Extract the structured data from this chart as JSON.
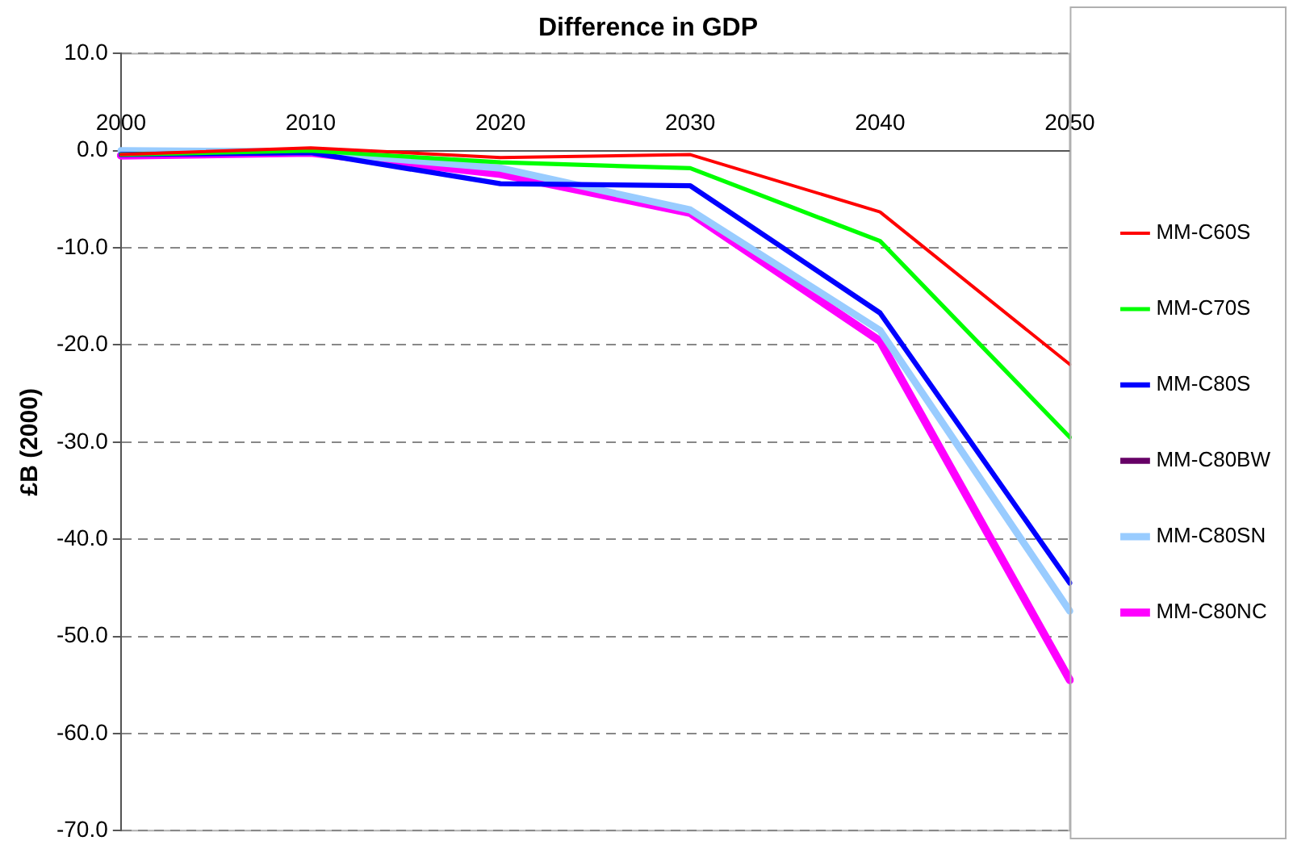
{
  "chart_data": {
    "type": "line",
    "title": "Difference in GDP",
    "ylabel": "£B (2000)",
    "categories": [
      "2000",
      "2010",
      "2020",
      "2030",
      "2040",
      "2050"
    ],
    "series": [
      {
        "name": "MM-C60S",
        "color": "#ff0000",
        "values": [
          -0.4,
          0.3,
          -0.7,
          -0.4,
          -6.3,
          -22.0
        ]
      },
      {
        "name": "MM-C70S",
        "color": "#00ff00",
        "values": [
          -0.4,
          0.0,
          -1.2,
          -1.8,
          -9.3,
          -29.5
        ]
      },
      {
        "name": "MM-C80S",
        "color": "#0000ff",
        "values": [
          -0.4,
          -0.2,
          -3.4,
          -3.6,
          -16.7,
          -44.5
        ]
      },
      {
        "name": "MM-C80BW",
        "color": "#660066",
        "values": [
          null,
          null,
          null,
          null,
          null,
          null
        ]
      },
      {
        "name": "MM-C80SN",
        "color": "#99ccff",
        "values": [
          0.0,
          -0.1,
          -1.8,
          -6.1,
          -18.5,
          -47.4
        ]
      },
      {
        "name": "MM-C80NC",
        "color": "#ff00ff",
        "values": [
          -0.5,
          -0.2,
          -2.4,
          -6.4,
          -19.6,
          -54.5
        ]
      }
    ],
    "ylim": [
      -70,
      10
    ],
    "yticks": [
      {
        "value": 10,
        "label": "10.0"
      },
      {
        "value": 0,
        "label": "0.0"
      },
      {
        "value": -10,
        "label": "-10.0"
      },
      {
        "value": -20,
        "label": "-20.0"
      },
      {
        "value": -30,
        "label": "-30.0"
      },
      {
        "value": -40,
        "label": "-40.0"
      },
      {
        "value": -50,
        "label": "-50.0"
      },
      {
        "value": -60,
        "label": "-60.0"
      },
      {
        "value": -70,
        "label": "-70.0"
      }
    ],
    "grid": "y",
    "legend": "right",
    "marker": "none",
    "line_style": "solid"
  }
}
